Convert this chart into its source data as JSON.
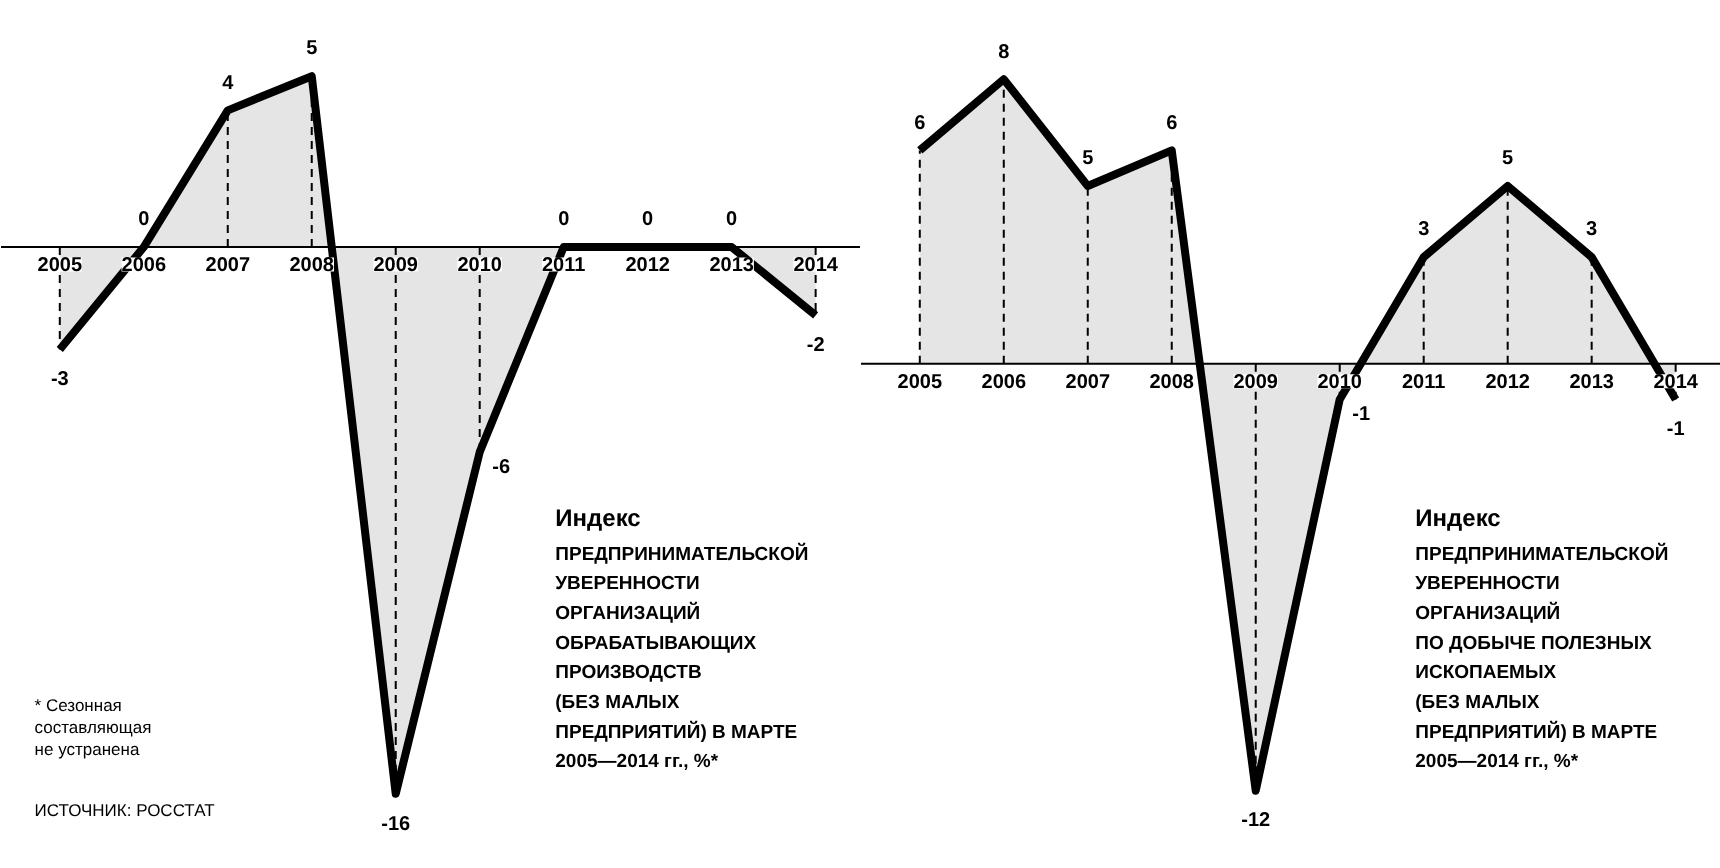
{
  "chart_data": [
    {
      "type": "area",
      "title": "Индекс",
      "subtitle": "ПРЕДПРИНИМАТЕЛЬСКОЙ\nУВЕРЕННОСТИ\nОРГАНИЗАЦИЙ\nОБРАБАТЫВАЮЩИХ\nПРОИЗВОДСТВ\n(БЕЗ МАЛЫХ\nПРЕДПРИЯТИЙ) В МАРТЕ\n2005—2014 гг., %*",
      "categories": [
        "2005",
        "2006",
        "2007",
        "2008",
        "2009",
        "2010",
        "2011",
        "2012",
        "2013",
        "2014"
      ],
      "series": [
        {
          "color": "#000000",
          "values": [
            -3,
            0,
            4,
            5,
            -16,
            -6,
            0,
            0,
            0,
            -2
          ]
        }
      ],
      "tick_labels": false,
      "data_labels": true,
      "annotations": [
        "* Сезонная\nсоставляющая\nне устранена",
        "ИСТОЧНИК: РОССТАТ"
      ]
    },
    {
      "type": "area",
      "title": "Индекс",
      "subtitle": "ПРЕДПРИНИМАТЕЛЬСКОЙ\nУВЕРЕННОСТИ\nОРГАНИЗАЦИЙ\nПО ДОБЫЧЕ ПОЛЕЗНЫХ\nИСКОПАЕМЫХ\n(БЕЗ МАЛЫХ\nПРЕДПРИЯТИЙ) В МАРТЕ\n2005—2014 гг., %*",
      "categories": [
        "2005",
        "2006",
        "2007",
        "2008",
        "2009",
        "2010",
        "2011",
        "2012",
        "2013",
        "2014"
      ],
      "series": [
        {
          "color": "#000000",
          "values": [
            6,
            8,
            5,
            6,
            -12,
            -1,
            3,
            5,
            3,
            -1
          ]
        }
      ],
      "tick_labels": false,
      "data_labels": true
    }
  ]
}
